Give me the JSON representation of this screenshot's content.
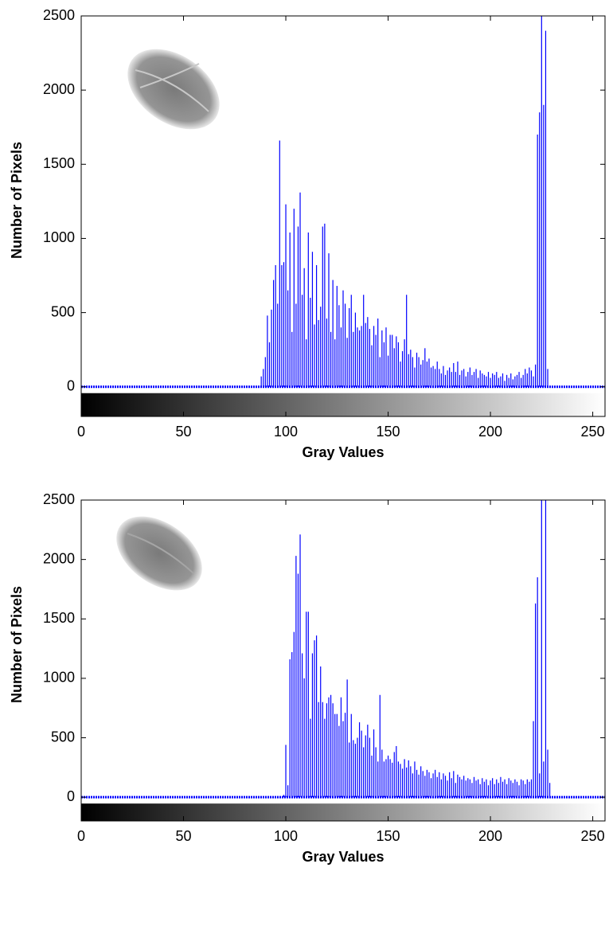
{
  "chart_data": [
    {
      "type": "stem",
      "xlabel": "Gray Values",
      "ylabel": "Number of Pixels",
      "xlim": [
        0,
        256
      ],
      "ylim": [
        -200,
        2500
      ],
      "xticks": [
        0,
        50,
        100,
        150,
        200,
        250
      ],
      "yticks": [
        0,
        500,
        1000,
        1500,
        2000,
        2500
      ],
      "series": [
        {
          "color": "#0000ff",
          "x": [
            88,
            89,
            90,
            91,
            92,
            93,
            94,
            95,
            96,
            97,
            98,
            99,
            100,
            101,
            102,
            103,
            104,
            105,
            106,
            107,
            108,
            109,
            110,
            111,
            112,
            113,
            114,
            115,
            116,
            117,
            118,
            119,
            120,
            121,
            122,
            123,
            124,
            125,
            126,
            127,
            128,
            129,
            130,
            131,
            132,
            133,
            134,
            135,
            136,
            137,
            138,
            139,
            140,
            141,
            142,
            143,
            144,
            145,
            146,
            147,
            148,
            149,
            150,
            151,
            152,
            153,
            154,
            155,
            156,
            157,
            158,
            159,
            160,
            161,
            162,
            163,
            164,
            165,
            166,
            167,
            168,
            169,
            170,
            171,
            172,
            173,
            174,
            175,
            176,
            177,
            178,
            179,
            180,
            181,
            182,
            183,
            184,
            185,
            186,
            187,
            188,
            189,
            190,
            191,
            192,
            193,
            194,
            195,
            196,
            197,
            198,
            199,
            200,
            201,
            202,
            203,
            204,
            205,
            206,
            207,
            208,
            209,
            210,
            211,
            212,
            213,
            214,
            215,
            216,
            217,
            218,
            219,
            220,
            221,
            222,
            223,
            224,
            225,
            226,
            227,
            228
          ],
          "values": [
            70,
            120,
            200,
            480,
            300,
            520,
            720,
            820,
            560,
            1660,
            820,
            840,
            1230,
            650,
            1040,
            370,
            1200,
            560,
            1080,
            1310,
            620,
            800,
            320,
            1040,
            600,
            910,
            420,
            820,
            450,
            540,
            1080,
            1100,
            460,
            900,
            370,
            720,
            320,
            680,
            550,
            400,
            650,
            560,
            330,
            530,
            620,
            370,
            500,
            400,
            380,
            410,
            620,
            430,
            470,
            390,
            280,
            410,
            350,
            460,
            200,
            380,
            300,
            400,
            210,
            350,
            350,
            260,
            340,
            300,
            170,
            240,
            320,
            620,
            220,
            250,
            200,
            130,
            230,
            200,
            150,
            180,
            260,
            170,
            190,
            130,
            140,
            120,
            170,
            120,
            90,
            140,
            80,
            110,
            130,
            100,
            160,
            100,
            170,
            80,
            110,
            120,
            70,
            100,
            130,
            80,
            100,
            120,
            60,
            110,
            90,
            80,
            70,
            100,
            60,
            90,
            80,
            100,
            60,
            70,
            90,
            40,
            80,
            60,
            90,
            50,
            70,
            80,
            100,
            60,
            80,
            120,
            90,
            130,
            110,
            70,
            150,
            1700,
            1850,
            2500,
            1900,
            2400,
            120
          ]
        }
      ]
    },
    {
      "type": "stem",
      "xlabel": "Gray Values",
      "ylabel": "Number of Pixels",
      "xlim": [
        0,
        256
      ],
      "ylim": [
        -200,
        2500
      ],
      "xticks": [
        0,
        50,
        100,
        150,
        200,
        250
      ],
      "yticks": [
        0,
        500,
        1000,
        1500,
        2000,
        2500
      ],
      "series": [
        {
          "color": "#0000ff",
          "x": [
            99,
            100,
            101,
            102,
            103,
            104,
            105,
            106,
            107,
            108,
            109,
            110,
            111,
            112,
            113,
            114,
            115,
            116,
            117,
            118,
            119,
            120,
            121,
            122,
            123,
            124,
            125,
            126,
            127,
            128,
            129,
            130,
            131,
            132,
            133,
            134,
            135,
            136,
            137,
            138,
            139,
            140,
            141,
            142,
            143,
            144,
            145,
            146,
            147,
            148,
            149,
            150,
            151,
            152,
            153,
            154,
            155,
            156,
            157,
            158,
            159,
            160,
            161,
            162,
            163,
            164,
            165,
            166,
            167,
            168,
            169,
            170,
            171,
            172,
            173,
            174,
            175,
            176,
            177,
            178,
            179,
            180,
            181,
            182,
            183,
            184,
            185,
            186,
            187,
            188,
            189,
            190,
            191,
            192,
            193,
            194,
            195,
            196,
            197,
            198,
            199,
            200,
            201,
            202,
            203,
            204,
            205,
            206,
            207,
            208,
            209,
            210,
            211,
            212,
            213,
            214,
            215,
            216,
            217,
            218,
            219,
            220,
            221,
            222,
            223,
            224,
            225,
            226,
            227,
            228,
            229
          ],
          "values": [
            20,
            440,
            100,
            1160,
            1220,
            1390,
            2030,
            1880,
            2210,
            1210,
            1000,
            1560,
            1560,
            660,
            1210,
            1320,
            1360,
            800,
            1100,
            800,
            660,
            790,
            840,
            860,
            790,
            700,
            700,
            600,
            840,
            640,
            710,
            990,
            460,
            700,
            480,
            450,
            500,
            630,
            560,
            420,
            520,
            610,
            500,
            350,
            570,
            420,
            300,
            860,
            400,
            300,
            320,
            350,
            320,
            290,
            380,
            430,
            300,
            280,
            240,
            320,
            250,
            310,
            260,
            200,
            300,
            230,
            190,
            260,
            220,
            180,
            230,
            210,
            160,
            200,
            230,
            170,
            210,
            150,
            200,
            180,
            140,
            210,
            160,
            220,
            120,
            190,
            170,
            150,
            180,
            140,
            160,
            150,
            120,
            170,
            140,
            150,
            110,
            160,
            130,
            150,
            100,
            140,
            160,
            110,
            150,
            120,
            170,
            130,
            150,
            110,
            160,
            140,
            120,
            150,
            130,
            100,
            150,
            140,
            110,
            150,
            130,
            150,
            640,
            1630,
            1850,
            200,
            2500,
            300,
            2500,
            400,
            120
          ]
        }
      ]
    }
  ]
}
